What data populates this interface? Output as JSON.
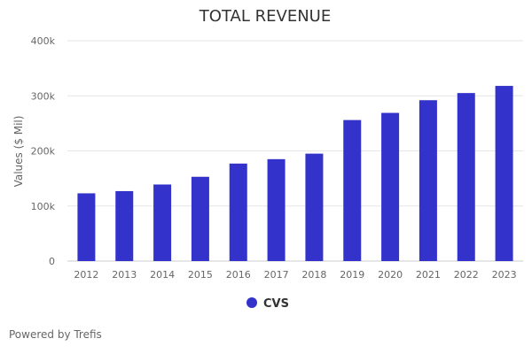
{
  "chart_data": {
    "type": "bar",
    "title": "TOTAL REVENUE",
    "xlabel": "",
    "ylabel": "Values ($ Mil)",
    "categories": [
      "2012",
      "2013",
      "2014",
      "2015",
      "2016",
      "2017",
      "2018",
      "2019",
      "2020",
      "2021",
      "2022",
      "2023"
    ],
    "series": [
      {
        "name": "CVS",
        "color": "#3333cc",
        "values": [
          123,
          127,
          139,
          153,
          177,
          185,
          195,
          256,
          269,
          292,
          305,
          318
        ]
      }
    ],
    "yticks": [
      {
        "value": 0,
        "label": "0"
      },
      {
        "value": 100,
        "label": "100k"
      },
      {
        "value": 200,
        "label": "200k"
      },
      {
        "value": 300,
        "label": "300k"
      },
      {
        "value": 400,
        "label": "400k"
      }
    ],
    "ylim": [
      0,
      400
    ],
    "grid": true,
    "legend_position": "bottom-center"
  },
  "footer": {
    "credit": "Powered by Trefis"
  }
}
